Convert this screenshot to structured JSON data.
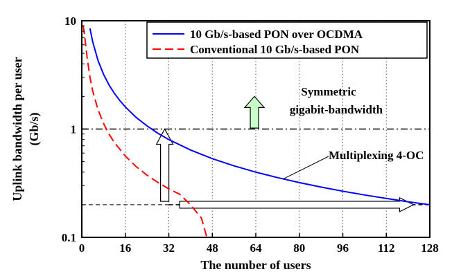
{
  "chart_data": {
    "type": "line",
    "xlabel": "The number of users",
    "ylabel_lines": [
      "Uplink bandwidth per user",
      "(Gb/s)"
    ],
    "x_ticks": [
      0,
      16,
      32,
      48,
      64,
      80,
      96,
      112,
      128
    ],
    "x_tick_labels": [
      "0",
      "16",
      "32",
      "48",
      "64",
      "80",
      "96",
      "112",
      "128"
    ],
    "y_ticks": [
      0.1,
      1,
      10
    ],
    "y_tick_labels": [
      "0.1",
      "1",
      "10"
    ],
    "xlim": [
      0,
      128
    ],
    "ylim": [
      0.1,
      10
    ],
    "y_scale": "log",
    "grid": "vertical dotted",
    "legend_position": "top-right",
    "series": [
      {
        "name": "10 Gb/s-based PON over OCDMA",
        "color": "#0000ff",
        "dash": "solid",
        "x": [
          3,
          4,
          6,
          8,
          10,
          12,
          14,
          16,
          20,
          24,
          28,
          32,
          40,
          48,
          56,
          64,
          72,
          80,
          88,
          96,
          104,
          112,
          120,
          128
        ],
        "y": [
          8.5,
          6.4,
          4.27,
          3.2,
          2.56,
          2.13,
          1.83,
          1.6,
          1.28,
          1.07,
          0.914,
          0.8,
          0.64,
          0.533,
          0.457,
          0.4,
          0.356,
          0.32,
          0.291,
          0.267,
          0.246,
          0.229,
          0.213,
          0.2
        ]
      },
      {
        "name": "Conventional 10 Gb/s-based PON",
        "color": "#ff0000",
        "dash": "dashed",
        "x": [
          0.5,
          1,
          2,
          3,
          4,
          6,
          8,
          10,
          12,
          16,
          20,
          24,
          28,
          32,
          36,
          40,
          44,
          46
        ],
        "y": [
          9.0,
          7.5,
          4.5,
          3.0,
          2.25,
          1.5,
          1.125,
          0.9,
          0.75,
          0.5625,
          0.45,
          0.375,
          0.321,
          0.28,
          0.25,
          0.2,
          0.15,
          0.1
        ]
      }
    ],
    "reference_lines": [
      {
        "y": 1,
        "style": "dash-dot"
      },
      {
        "y": 0.2,
        "style": "dashed",
        "x_from": 32,
        "x_to": 128
      }
    ],
    "annotations": {
      "symmetric_line1": "Symmetric",
      "symmetric_line2": "gigabit-bandwidth",
      "multiplexing": "Multiplexing 4-OC"
    },
    "arrow_colors": {
      "green": "#c8ffc8",
      "outline": "#000000",
      "fill": "#ffffff"
    }
  }
}
